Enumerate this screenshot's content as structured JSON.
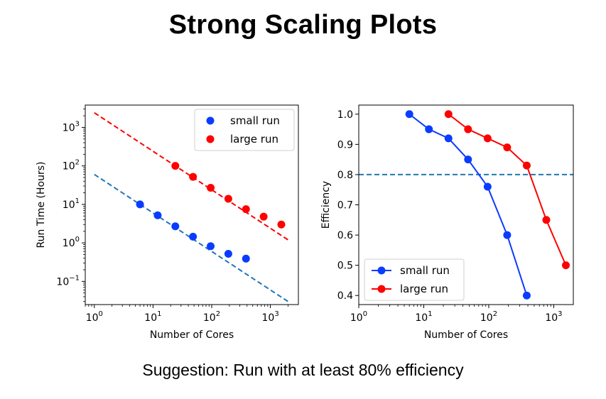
{
  "slide": {
    "title": "Strong Scaling Plots",
    "caption": "Suggestion:  Run with at least 80% efficiency"
  },
  "colors": {
    "small": "#0a3cff",
    "large": "#ff0000",
    "dashed": "#1f77b4"
  },
  "chart_data": [
    {
      "type": "scatter",
      "xlabel": "Number of Cores",
      "ylabel": "Run Time (Hours)",
      "xscale": "log",
      "yscale": "log",
      "xlim": [
        0.7,
        3000
      ],
      "ylim": [
        0.025,
        3800
      ],
      "xticks": [
        {
          "value": 1,
          "label": "10^0"
        },
        {
          "value": 10,
          "label": "10^1"
        },
        {
          "value": 100,
          "label": "10^2"
        },
        {
          "value": 1000,
          "label": "10^3"
        }
      ],
      "yticks": [
        {
          "value": 0.1,
          "label": "10^-1"
        },
        {
          "value": 1,
          "label": "10^0"
        },
        {
          "value": 10,
          "label": "10^1"
        },
        {
          "value": 100,
          "label": "10^2"
        },
        {
          "value": 1000,
          "label": "10^3"
        }
      ],
      "legend_position": "top-right",
      "series": [
        {
          "name": "small run",
          "color": "#0a3cff",
          "style": "markers",
          "x": [
            6,
            12,
            24,
            48,
            96,
            192,
            384
          ],
          "y": [
            10,
            5.2,
            2.7,
            1.45,
            0.82,
            0.52,
            0.39
          ]
        },
        {
          "name": "large run",
          "color": "#ff0000",
          "style": "markers",
          "x": [
            24,
            48,
            96,
            192,
            384,
            768,
            1536
          ],
          "y": [
            100,
            52,
            27,
            14,
            7.5,
            4.8,
            3.0
          ]
        }
      ],
      "reference_lines": [
        {
          "color": "#1f77b4",
          "style": "dashed",
          "x": [
            1,
            2000
          ],
          "y": [
            60,
            0.03
          ]
        },
        {
          "color": "#ff0000",
          "style": "dashed",
          "x": [
            1,
            2000
          ],
          "y": [
            2400,
            1.2
          ]
        }
      ]
    },
    {
      "type": "line",
      "xlabel": "Number of Cores",
      "ylabel": "Efficiency",
      "xscale": "log",
      "xlim": [
        1,
        2000
      ],
      "ylim": [
        0.37,
        1.03
      ],
      "xticks": [
        {
          "value": 1,
          "label": "10^0"
        },
        {
          "value": 10,
          "label": "10^1"
        },
        {
          "value": 100,
          "label": "10^2"
        },
        {
          "value": 1000,
          "label": "10^3"
        }
      ],
      "yticks": [
        {
          "value": 0.4,
          "label": "0.4"
        },
        {
          "value": 0.5,
          "label": "0.5"
        },
        {
          "value": 0.6,
          "label": "0.6"
        },
        {
          "value": 0.7,
          "label": "0.7"
        },
        {
          "value": 0.8,
          "label": "0.8"
        },
        {
          "value": 0.9,
          "label": "0.9"
        },
        {
          "value": 1.0,
          "label": "1.0"
        }
      ],
      "legend_position": "bottom-left",
      "series": [
        {
          "name": "small run",
          "color": "#0a3cff",
          "style": "line-markers",
          "x": [
            6,
            12,
            24,
            48,
            96,
            192,
            384
          ],
          "y": [
            1.0,
            0.95,
            0.92,
            0.85,
            0.76,
            0.6,
            0.4
          ]
        },
        {
          "name": "large run",
          "color": "#ff0000",
          "style": "line-markers",
          "x": [
            24,
            48,
            96,
            192,
            384,
            768,
            1536
          ],
          "y": [
            1.0,
            0.95,
            0.92,
            0.89,
            0.83,
            0.65,
            0.5
          ]
        }
      ],
      "hlines": [
        {
          "y": 0.8,
          "color": "#1f77b4",
          "style": "dashed"
        }
      ]
    }
  ]
}
